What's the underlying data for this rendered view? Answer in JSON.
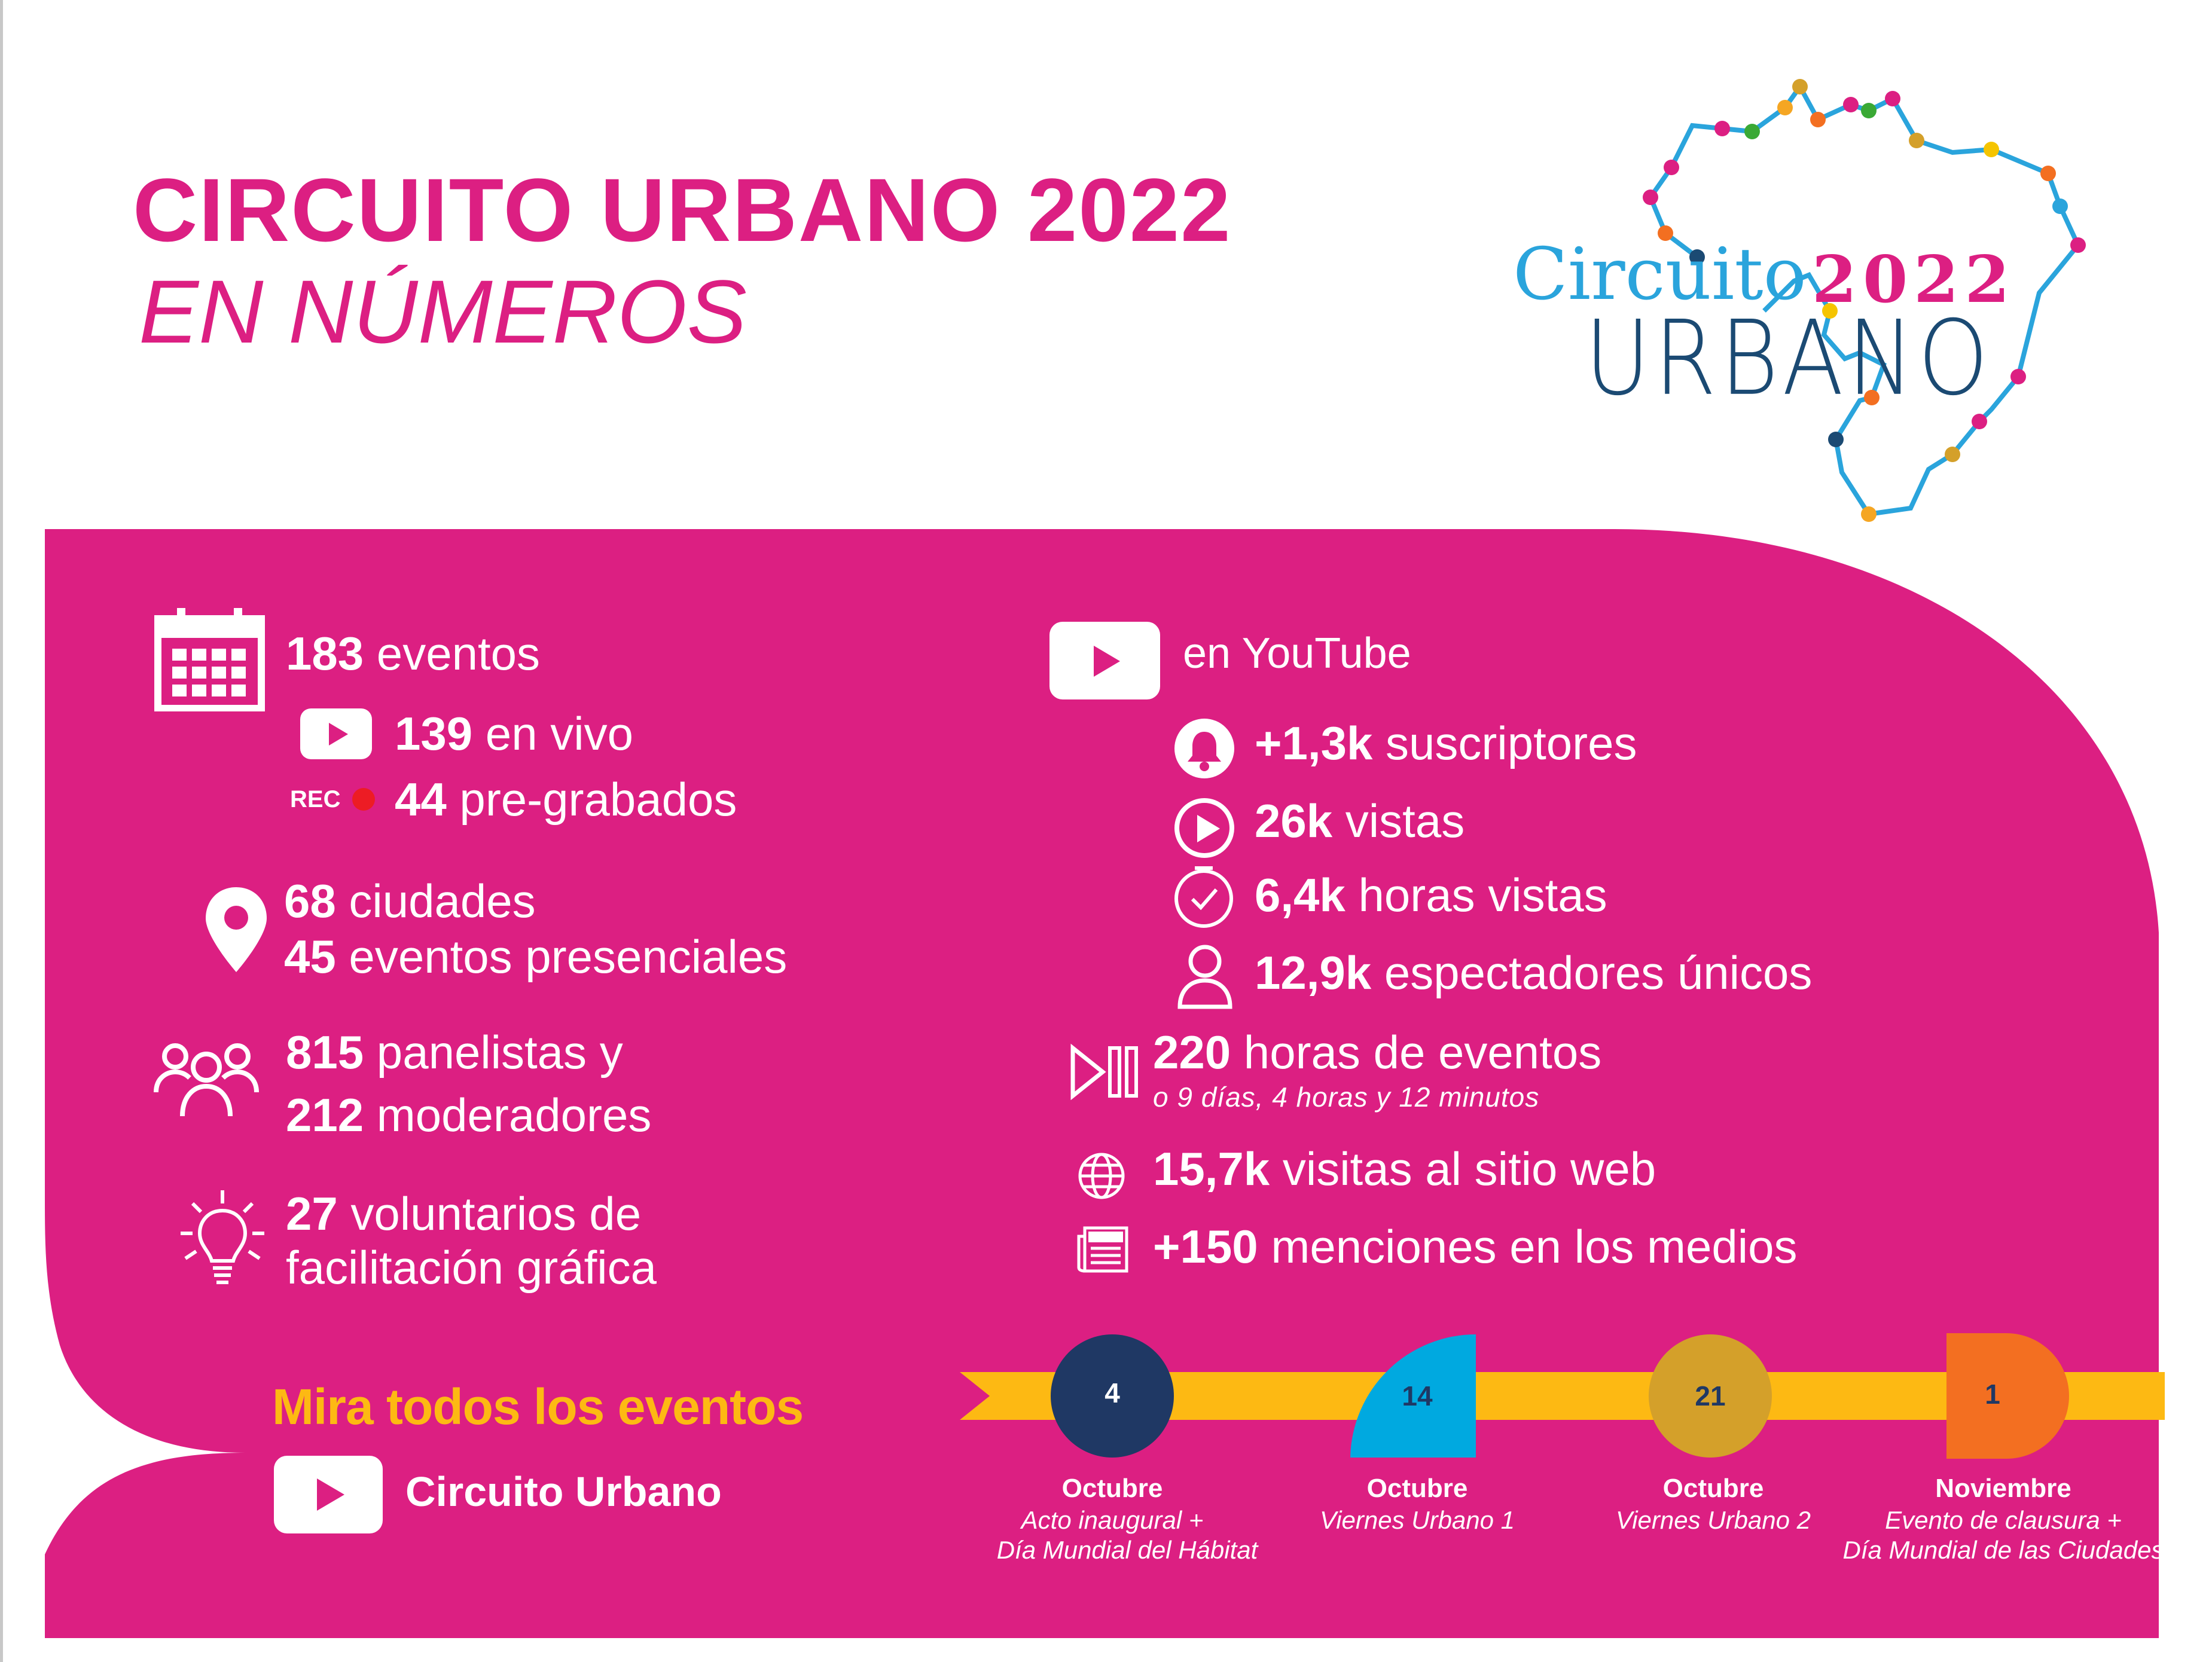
{
  "title": {
    "line1": "CIRCUITO URBANO 2022",
    "line2": "EN NÚMEROS"
  },
  "logo": {
    "word1": "Circuito",
    "year": "2022",
    "word2": "URBANO"
  },
  "colors": {
    "magenta": "#dc1f82",
    "yellow": "#fdb913",
    "navy": "#1f3864",
    "cyan": "#00a9e0",
    "gold": "#d4a02a",
    "orange": "#f36f21",
    "rec_dot": "#ed1c24"
  },
  "left": {
    "events": {
      "num": "183",
      "text": " eventos",
      "icon": "calendar-icon"
    },
    "live": {
      "num": "139",
      "text": " en vivo",
      "icon": "youtube-icon"
    },
    "prerecorded": {
      "badge": "REC",
      "num": "44",
      "text": " pre-grabados"
    },
    "cities": {
      "num": "68",
      "text": " ciudades",
      "icon": "location-pin-icon"
    },
    "inperson": {
      "num": "45",
      "text": " eventos presenciales"
    },
    "panelists": {
      "num": "815",
      "text": " panelistas y",
      "icon": "group-icon"
    },
    "moderators": {
      "num": "212",
      "text": " moderadores"
    },
    "volunteers": {
      "num": "27",
      "text": " voluntarios de",
      "icon": "lightbulb-icon"
    },
    "volunteers2": {
      "text": "facilitación gráfica"
    }
  },
  "right": {
    "header": {
      "text": "en YouTube",
      "icon": "youtube-icon"
    },
    "subscribers": {
      "num": "+1,3k",
      "text": " suscriptores",
      "icon": "bell-icon"
    },
    "views": {
      "num": "26k",
      "text": " vistas",
      "icon": "play-circle-icon"
    },
    "hours": {
      "num": "6,4k",
      "text": " horas vistas",
      "icon": "clock-icon"
    },
    "viewers": {
      "num": "12,9k",
      "text": " espectadores únicos",
      "icon": "person-icon"
    },
    "event_hours": {
      "num": "220",
      "text": " horas de eventos",
      "sub": "o 9 días, 4 horas y 12 minutos",
      "icon": "play-pause-icon"
    },
    "web": {
      "num": "15,7k",
      "text": " visitas al sitio web",
      "icon": "globe-icon"
    },
    "media": {
      "num": "+150",
      "text": " menciones en los medios",
      "icon": "news-icon"
    }
  },
  "cta": {
    "text": "Mira todos los eventos",
    "channel": "Circuito Urbano"
  },
  "timeline": [
    {
      "day": "4",
      "month": "Octubre",
      "desc1": "Acto inaugural +",
      "desc2": "Día Mundial del Hábitat"
    },
    {
      "day": "14",
      "month": "Octubre",
      "desc1": "Viernes Urbano 1",
      "desc2": ""
    },
    {
      "day": "21",
      "month": "Octubre",
      "desc1": "Viernes Urbano 2",
      "desc2": ""
    },
    {
      "day": "1",
      "month": "Noviembre",
      "desc1": "Evento de clausura +",
      "desc2": "Día Mundial de las Ciudades"
    }
  ]
}
